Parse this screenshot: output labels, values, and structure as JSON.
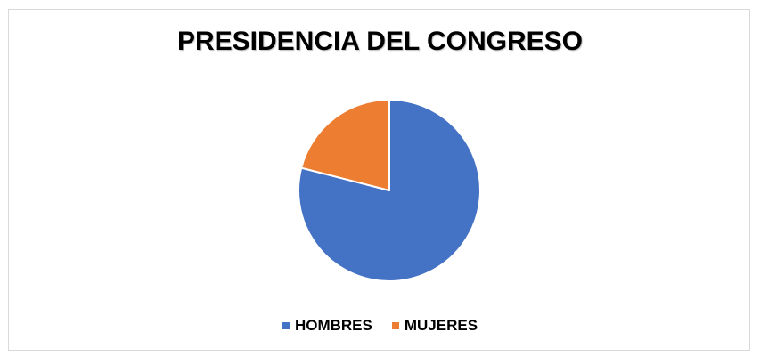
{
  "chart_data": {
    "type": "pie",
    "title": "PRESIDENCIA DEL CONGRESO",
    "categories": [
      "HOMBRES",
      "MUJERES"
    ],
    "values": [
      79,
      21
    ],
    "colors": [
      "#4472c4",
      "#ed7d31"
    ],
    "legend_position": "bottom"
  }
}
